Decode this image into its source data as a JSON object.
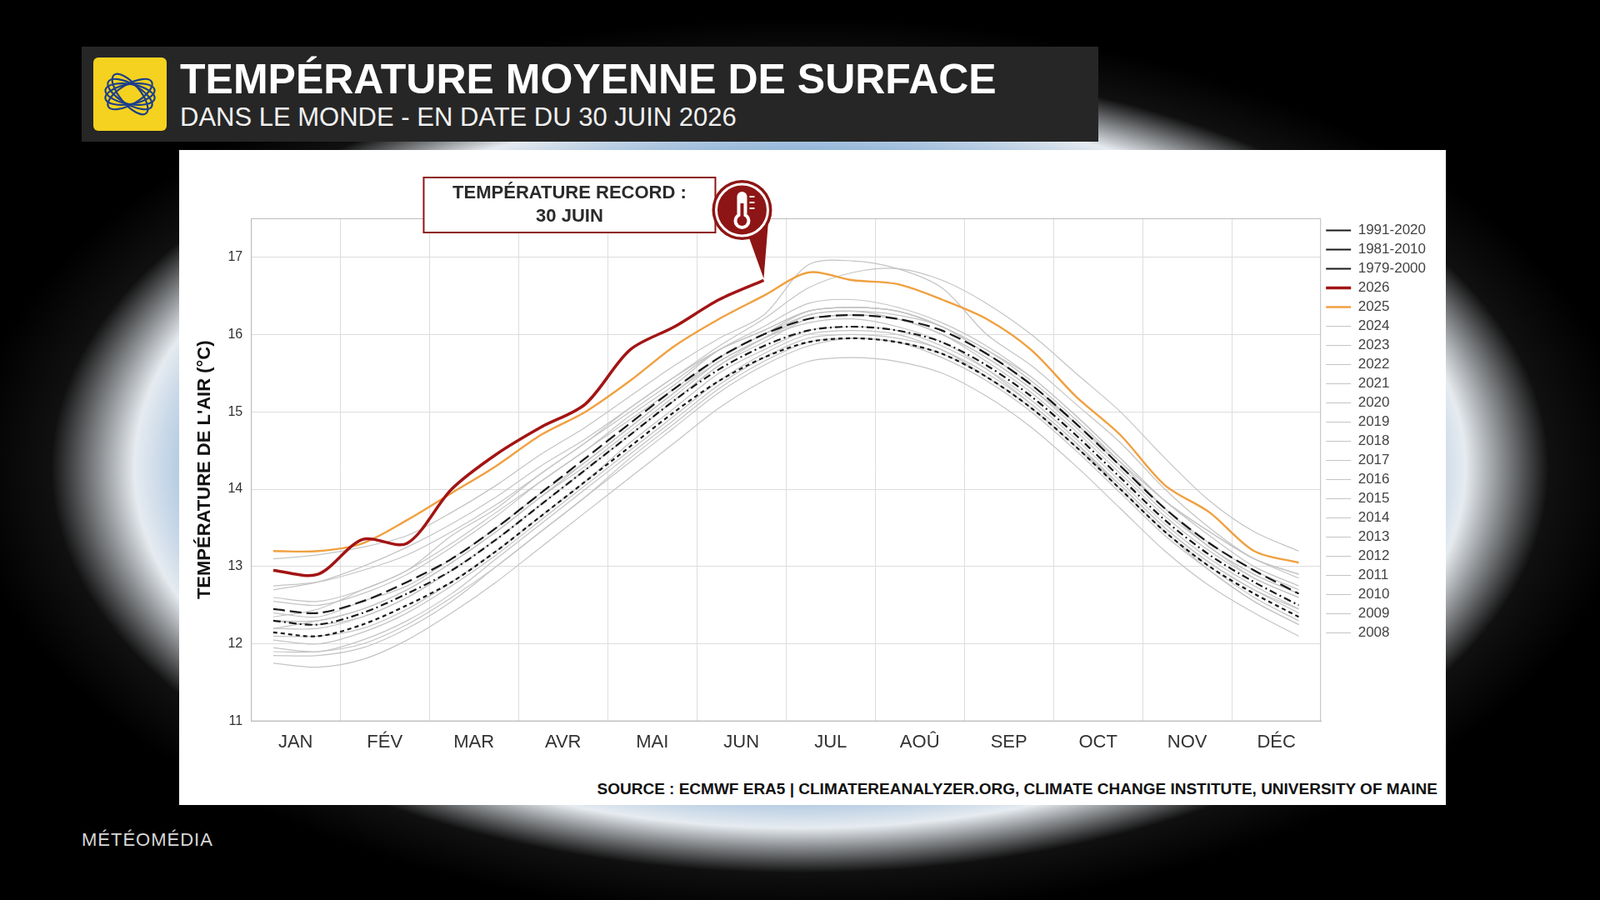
{
  "chart_data": {
    "type": "line",
    "title": "TEMPÉRATURE MOYENNE DE SURFACE",
    "subtitle": "DANS LE MONDE - EN DATE DU 30 JUIN 2026",
    "y_label": "TEMPÉRATURE DE L'AIR (°C)",
    "source": "SOURCE : ECMWF ERA5 | CLIMATEREANALYZER.ORG, CLIMATE CHANGE INSTITUTE, UNIVERSITY OF MAINE",
    "watermark": "MÉTÉOMÉDIA",
    "annotation": {
      "text": [
        "TEMPÉRATURE RECORD :",
        "30 JUIN"
      ],
      "series": "2026"
    },
    "categories": [
      "JAN",
      null,
      "FÉV",
      null,
      "MAR",
      null,
      "AVR",
      null,
      "MAI",
      null,
      "JUN",
      null,
      "JUL",
      null,
      "AOÛ",
      null,
      "SEP",
      null,
      "OCT",
      null,
      "NOV",
      null,
      "DÉC",
      null
    ],
    "ylim": [
      11,
      17.5
    ],
    "yticks": [
      11,
      12,
      13,
      14,
      15,
      16,
      17
    ],
    "grid": true,
    "legend": "right",
    "series": [
      {
        "name": "1991-2020",
        "color": "#1a1a1a",
        "line_style": "longdash",
        "values": [
          12.45,
          12.4,
          12.55,
          12.8,
          13.1,
          13.5,
          13.95,
          14.4,
          14.85,
          15.3,
          15.7,
          16.0,
          16.2,
          16.25,
          16.2,
          16.05,
          15.75,
          15.35,
          14.85,
          14.3,
          13.75,
          13.3,
          12.95,
          12.65
        ]
      },
      {
        "name": "1981-2010",
        "color": "#1a1a1a",
        "line_style": "dashdot",
        "values": [
          12.3,
          12.25,
          12.4,
          12.65,
          12.95,
          13.35,
          13.8,
          14.25,
          14.7,
          15.15,
          15.55,
          15.85,
          16.05,
          16.1,
          16.05,
          15.9,
          15.6,
          15.2,
          14.7,
          14.15,
          13.6,
          13.15,
          12.8,
          12.5
        ]
      },
      {
        "name": "1979-2000",
        "color": "#1a1a1a",
        "line_style": "dashed",
        "values": [
          12.15,
          12.1,
          12.25,
          12.5,
          12.8,
          13.2,
          13.65,
          14.1,
          14.55,
          15.0,
          15.4,
          15.7,
          15.9,
          15.95,
          15.9,
          15.75,
          15.45,
          15.05,
          14.55,
          14.0,
          13.45,
          13.0,
          12.65,
          12.35
        ]
      },
      {
        "name": "2026",
        "color": "#a31414",
        "line_style": "solid",
        "values": [
          12.95,
          12.9,
          13.35,
          13.3,
          14.0,
          14.45,
          14.8,
          15.1,
          15.8,
          16.1,
          16.45,
          16.7,
          null,
          null,
          null,
          null,
          null,
          null,
          null,
          null,
          null,
          null,
          null,
          null
        ]
      },
      {
        "name": "2025",
        "color": "#f0a040",
        "line_style": "solid",
        "values": [
          13.2,
          13.2,
          13.3,
          13.6,
          13.95,
          14.3,
          14.7,
          15.0,
          15.4,
          15.85,
          16.2,
          16.5,
          16.8,
          16.7,
          16.65,
          16.45,
          16.2,
          15.8,
          15.2,
          14.7,
          14.05,
          13.7,
          13.2,
          13.05
        ]
      },
      {
        "name": "2024",
        "color": "#c4c4c4",
        "line_style": "solid",
        "values": [
          13.1,
          13.15,
          13.25,
          13.4,
          13.7,
          14.05,
          14.45,
          14.8,
          15.2,
          15.6,
          15.95,
          16.25,
          16.9,
          16.95,
          16.85,
          16.6,
          16.0,
          15.6,
          15.1,
          14.6,
          14.0,
          13.5,
          13.1,
          12.9
        ]
      },
      {
        "name": "2023",
        "color": "#c4c4c4",
        "line_style": "solid",
        "values": [
          12.35,
          12.45,
          12.7,
          12.95,
          13.4,
          13.75,
          14.2,
          14.6,
          15.05,
          15.45,
          15.85,
          16.2,
          16.6,
          16.8,
          16.85,
          16.7,
          16.4,
          16.0,
          15.5,
          15.0,
          14.4,
          13.85,
          13.45,
          13.2
        ]
      },
      {
        "name": "2022",
        "color": "#c4c4c4",
        "line_style": "solid",
        "values": [
          12.4,
          12.35,
          12.55,
          12.75,
          13.1,
          13.5,
          13.95,
          14.35,
          14.8,
          15.25,
          15.7,
          16.0,
          16.3,
          16.35,
          16.3,
          16.1,
          15.8,
          15.4,
          14.9,
          14.35,
          13.75,
          13.3,
          12.95,
          12.7
        ]
      },
      {
        "name": "2021",
        "color": "#c4c4c4",
        "line_style": "solid",
        "values": [
          12.3,
          12.3,
          12.45,
          12.7,
          13.05,
          13.45,
          13.9,
          14.3,
          14.75,
          15.2,
          15.65,
          15.95,
          16.25,
          16.3,
          16.25,
          16.1,
          15.75,
          15.35,
          14.85,
          14.3,
          13.75,
          13.25,
          12.9,
          12.65
        ]
      },
      {
        "name": "2020",
        "color": "#c4c4c4",
        "line_style": "solid",
        "values": [
          12.75,
          12.8,
          12.95,
          13.15,
          13.45,
          13.8,
          14.2,
          14.6,
          15.0,
          15.4,
          15.8,
          16.05,
          16.3,
          16.35,
          16.3,
          16.1,
          15.8,
          15.45,
          14.95,
          14.4,
          13.85,
          13.4,
          13.0,
          12.75
        ]
      },
      {
        "name": "2019",
        "color": "#c4c4c4",
        "line_style": "solid",
        "values": [
          12.6,
          12.55,
          12.7,
          12.95,
          13.3,
          13.7,
          14.1,
          14.5,
          14.95,
          15.35,
          15.8,
          16.1,
          16.4,
          16.45,
          16.35,
          16.15,
          15.85,
          15.45,
          14.95,
          14.4,
          13.85,
          13.45,
          13.1,
          12.85
        ]
      },
      {
        "name": "2018",
        "color": "#c4c4c4",
        "line_style": "solid",
        "values": [
          12.3,
          12.25,
          12.35,
          12.6,
          12.95,
          13.35,
          13.8,
          14.25,
          14.7,
          15.15,
          15.6,
          15.9,
          16.2,
          16.25,
          16.2,
          16.0,
          15.65,
          15.25,
          14.75,
          14.2,
          13.65,
          13.2,
          12.85,
          12.6
        ]
      },
      {
        "name": "2017",
        "color": "#c4c4c4",
        "line_style": "solid",
        "values": [
          12.55,
          12.5,
          12.65,
          12.9,
          13.25,
          13.65,
          14.1,
          14.5,
          14.9,
          15.3,
          15.7,
          16.0,
          16.25,
          16.3,
          16.2,
          16.0,
          15.7,
          15.3,
          14.8,
          14.25,
          13.7,
          13.25,
          12.85,
          12.6
        ]
      },
      {
        "name": "2016",
        "color": "#c4c4c4",
        "line_style": "solid",
        "values": [
          12.7,
          12.8,
          13.0,
          13.25,
          13.55,
          13.9,
          14.3,
          14.65,
          15.05,
          15.45,
          15.8,
          16.05,
          16.3,
          16.35,
          16.3,
          16.1,
          15.75,
          15.35,
          14.85,
          14.3,
          13.75,
          13.25,
          12.9,
          12.65
        ]
      },
      {
        "name": "2015",
        "color": "#c4c4c4",
        "line_style": "solid",
        "values": [
          12.2,
          12.2,
          12.35,
          12.6,
          12.95,
          13.35,
          13.8,
          14.25,
          14.7,
          15.15,
          15.6,
          15.95,
          16.2,
          16.25,
          16.2,
          16.0,
          15.7,
          15.3,
          14.85,
          14.35,
          13.85,
          13.45,
          13.1,
          12.9
        ]
      },
      {
        "name": "2014",
        "color": "#c4c4c4",
        "line_style": "solid",
        "values": [
          12.1,
          12.1,
          12.2,
          12.45,
          12.8,
          13.2,
          13.65,
          14.1,
          14.6,
          15.05,
          15.5,
          15.8,
          16.05,
          16.1,
          16.05,
          15.85,
          15.55,
          15.15,
          14.65,
          14.1,
          13.55,
          13.1,
          12.75,
          12.45
        ]
      },
      {
        "name": "2013",
        "color": "#c4c4c4",
        "line_style": "solid",
        "values": [
          12.05,
          12.0,
          12.15,
          12.4,
          12.75,
          13.15,
          13.6,
          14.05,
          14.5,
          14.95,
          15.4,
          15.75,
          16.0,
          16.05,
          16.0,
          15.8,
          15.5,
          15.1,
          14.6,
          14.05,
          13.5,
          13.05,
          12.7,
          12.4
        ]
      },
      {
        "name": "2012",
        "color": "#c4c4c4",
        "line_style": "solid",
        "values": [
          11.95,
          11.9,
          12.05,
          12.3,
          12.65,
          13.1,
          13.55,
          14.0,
          14.45,
          14.9,
          15.35,
          15.7,
          15.95,
          16.0,
          15.95,
          15.8,
          15.45,
          15.05,
          14.55,
          14.0,
          13.45,
          13.0,
          12.6,
          12.3
        ]
      },
      {
        "name": "2011",
        "color": "#c4c4c4",
        "line_style": "solid",
        "values": [
          11.9,
          11.9,
          12.0,
          12.25,
          12.6,
          13.0,
          13.45,
          13.9,
          14.4,
          14.85,
          15.3,
          15.65,
          15.9,
          15.95,
          15.9,
          15.7,
          15.4,
          15.0,
          14.5,
          13.95,
          13.4,
          12.95,
          12.55,
          12.25
        ]
      },
      {
        "name": "2010",
        "color": "#c4c4c4",
        "line_style": "solid",
        "values": [
          12.2,
          12.3,
          12.45,
          12.7,
          13.05,
          13.45,
          13.9,
          14.35,
          14.8,
          15.25,
          15.65,
          15.95,
          16.15,
          16.2,
          16.1,
          15.9,
          15.55,
          15.1,
          14.6,
          14.0,
          13.45,
          12.95,
          12.55,
          12.25
        ]
      },
      {
        "name": "2009",
        "color": "#c4c4c4",
        "line_style": "solid",
        "values": [
          11.85,
          11.85,
          11.95,
          12.2,
          12.55,
          13.0,
          13.45,
          13.9,
          14.35,
          14.8,
          15.25,
          15.6,
          15.85,
          15.95,
          15.9,
          15.75,
          15.45,
          15.05,
          14.55,
          14.05,
          13.5,
          13.05,
          12.7,
          12.45
        ]
      },
      {
        "name": "2008",
        "color": "#c4c4c4",
        "line_style": "solid",
        "values": [
          11.75,
          11.7,
          11.8,
          12.05,
          12.4,
          12.8,
          13.25,
          13.7,
          14.15,
          14.6,
          15.05,
          15.4,
          15.65,
          15.7,
          15.65,
          15.5,
          15.2,
          14.8,
          14.3,
          13.75,
          13.2,
          12.75,
          12.4,
          12.1
        ]
      }
    ]
  }
}
